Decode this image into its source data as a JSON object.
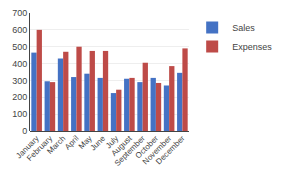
{
  "chart_data": {
    "type": "bar",
    "categories": [
      "January",
      "February",
      "March",
      "April",
      "May",
      "June",
      "July",
      "August",
      "September",
      "October",
      "November",
      "December"
    ],
    "series": [
      {
        "name": "Sales",
        "color": "#4472C4",
        "values": [
          465,
          295,
          430,
          320,
          340,
          315,
          225,
          310,
          290,
          315,
          270,
          345
        ]
      },
      {
        "name": "Expenses",
        "color": "#BE4B48",
        "values": [
          600,
          290,
          470,
          500,
          475,
          475,
          245,
          315,
          405,
          285,
          385,
          490
        ]
      }
    ],
    "ylim": [
      0,
      700
    ],
    "yticks": [
      0,
      100,
      200,
      300,
      400,
      500,
      600,
      700
    ],
    "grid": true,
    "legend": "upper right"
  }
}
